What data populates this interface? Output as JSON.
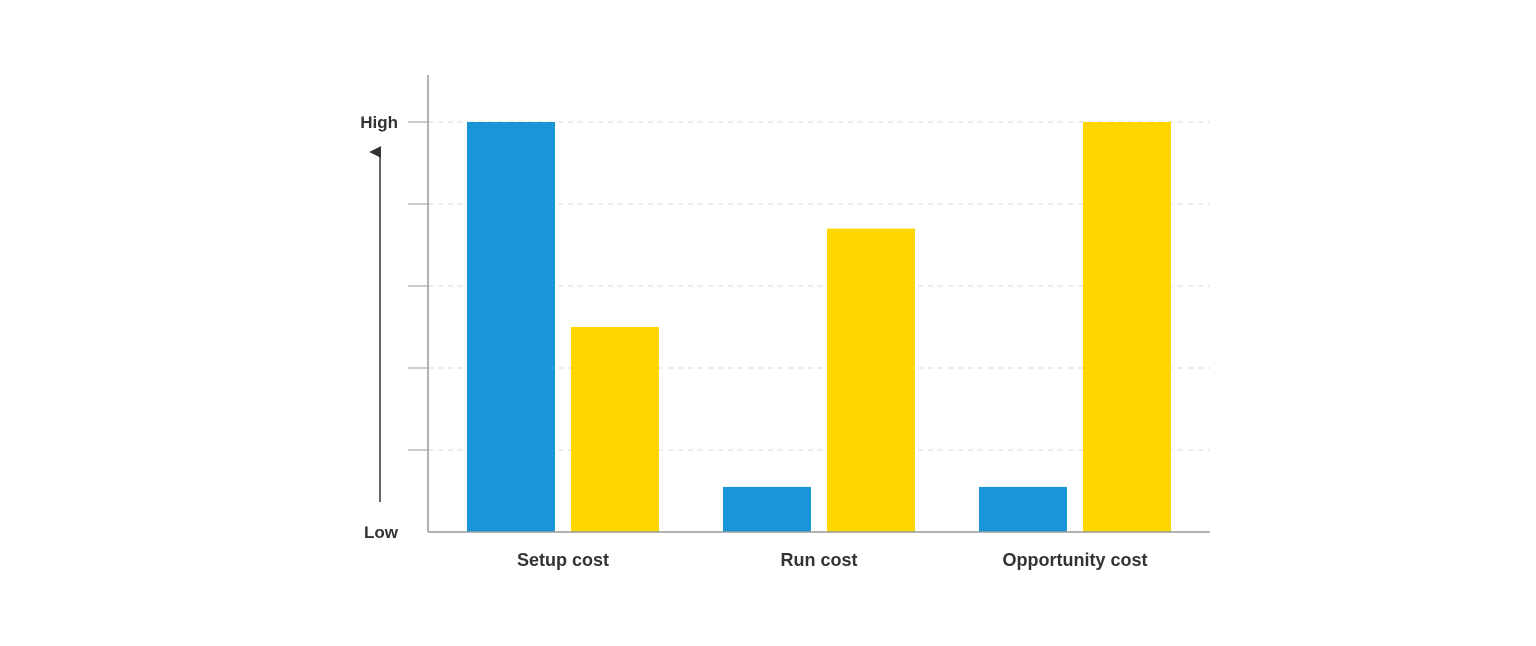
{
  "chart_data": {
    "type": "bar",
    "categories": [
      "Setup cost",
      "Run cost",
      "Opportunity cost"
    ],
    "series": [
      {
        "color": "#1996d8",
        "values": [
          5,
          0.55,
          0.55
        ]
      },
      {
        "color": "#ffd600",
        "values": [
          2.5,
          3.7,
          5
        ]
      }
    ],
    "ylim": [
      0,
      5
    ],
    "y_ticks": [
      {
        "value": 5,
        "label": "High"
      },
      {
        "value": 0,
        "label": "Low"
      }
    ],
    "grid": true,
    "gridlines": [
      1,
      2,
      3,
      4,
      5
    ],
    "y_arrow": true,
    "colors": {
      "axis": "#999999",
      "grid": "#d9d9d9",
      "text": "#333333",
      "arrow": "#333333"
    }
  }
}
